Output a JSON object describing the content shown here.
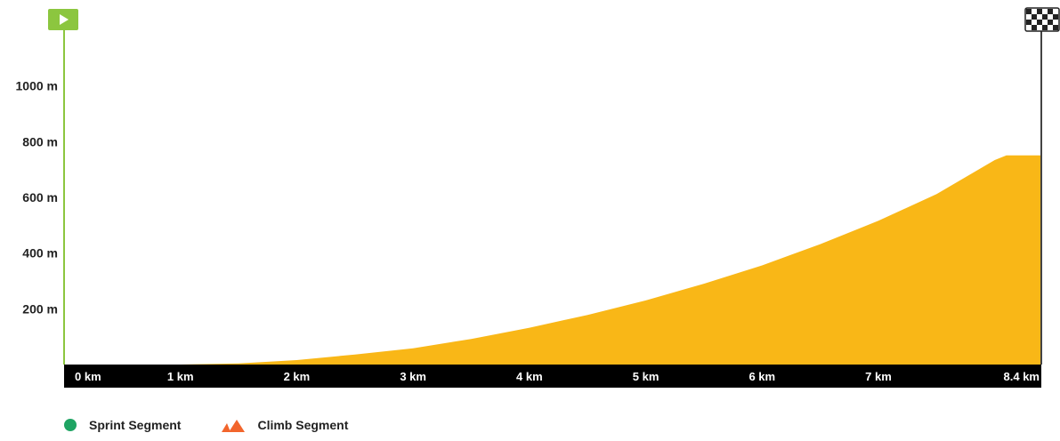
{
  "chart_data": {
    "type": "area",
    "title": "",
    "xlabel": "",
    "ylabel": "",
    "x_unit": "km",
    "y_unit": "m",
    "xlim": [
      0,
      8.4
    ],
    "ylim": [
      0,
      1200
    ],
    "x_ticks": [
      {
        "value": 0,
        "label": "0 km"
      },
      {
        "value": 1,
        "label": "1 km"
      },
      {
        "value": 2,
        "label": "2 km"
      },
      {
        "value": 3,
        "label": "3 km"
      },
      {
        "value": 4,
        "label": "4 km"
      },
      {
        "value": 5,
        "label": "5 km"
      },
      {
        "value": 6,
        "label": "6 km"
      },
      {
        "value": 7,
        "label": "7 km"
      },
      {
        "value": 8.4,
        "label": "8.4 km"
      }
    ],
    "y_ticks": [
      {
        "value": 200,
        "label": "200 m"
      },
      {
        "value": 400,
        "label": "400 m"
      },
      {
        "value": 600,
        "label": "600 m"
      },
      {
        "value": 800,
        "label": "800 m"
      },
      {
        "value": 1000,
        "label": "1000 m"
      }
    ],
    "series": [
      {
        "color": "#f9b717",
        "points": [
          {
            "x": 0,
            "y": 0
          },
          {
            "x": 1,
            "y": 0
          },
          {
            "x": 1.5,
            "y": 4
          },
          {
            "x": 2,
            "y": 16
          },
          {
            "x": 2.5,
            "y": 36
          },
          {
            "x": 3,
            "y": 58
          },
          {
            "x": 3.5,
            "y": 92
          },
          {
            "x": 4,
            "y": 132
          },
          {
            "x": 4.5,
            "y": 178
          },
          {
            "x": 5,
            "y": 230
          },
          {
            "x": 5.5,
            "y": 290
          },
          {
            "x": 6,
            "y": 356
          },
          {
            "x": 6.5,
            "y": 432
          },
          {
            "x": 7,
            "y": 516
          },
          {
            "x": 7.5,
            "y": 612
          },
          {
            "x": 8.0,
            "y": 734
          },
          {
            "x": 8.1,
            "y": 751
          },
          {
            "x": 8.4,
            "y": 751
          }
        ]
      }
    ],
    "start_marker_color": "#8cc63f",
    "finish_marker": "checkered-flag",
    "grid": false
  },
  "legend": {
    "sprint": {
      "label": "Sprint Segment",
      "color": "#1fa463",
      "icon": "sprint-dot-icon"
    },
    "climb": {
      "label": "Climb Segment",
      "color": "#f2652c",
      "icon": "climb-mountain-icon"
    }
  }
}
